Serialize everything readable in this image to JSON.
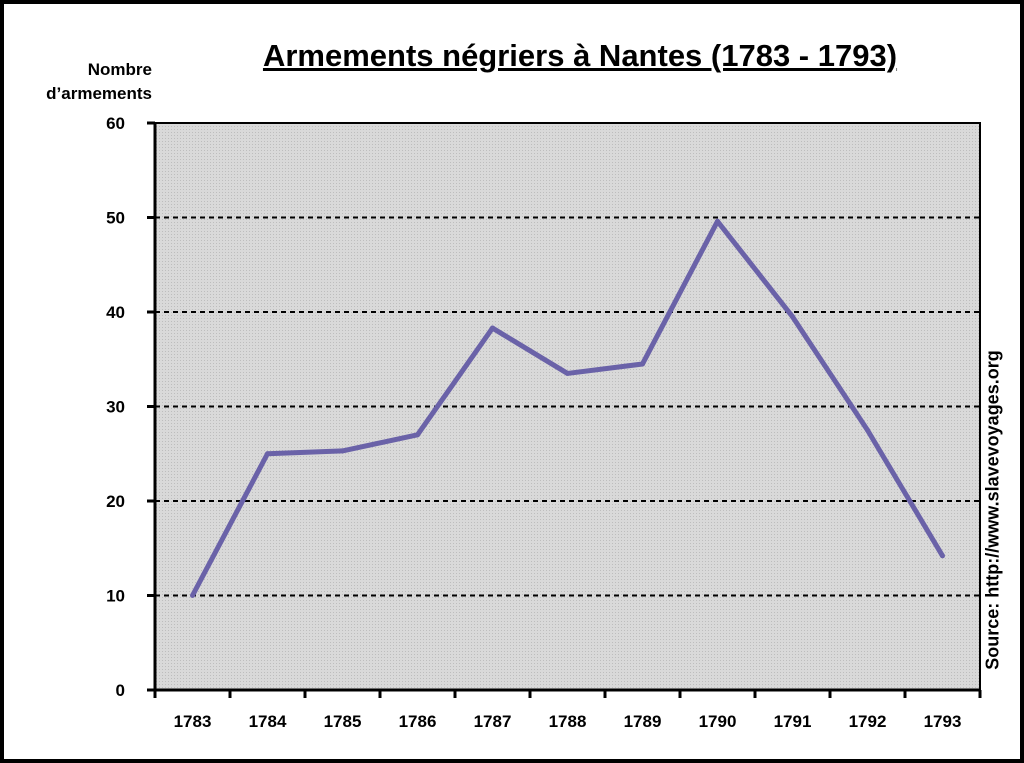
{
  "chart_data": {
    "type": "line",
    "title": "Armements négriers à Nantes (1783 - 1793)",
    "ylabel_lines": [
      "Nombre",
      "d’armements"
    ],
    "source": "Source: http://www.slavevoyages.org",
    "categories": [
      "1783",
      "1784",
      "1785",
      "1786",
      "1787",
      "1788",
      "1789",
      "1790",
      "1791",
      "1792",
      "1793"
    ],
    "values": [
      10,
      25,
      25.3,
      27,
      38.3,
      33.5,
      34.5,
      49.6,
      39.5,
      27.5,
      14.2
    ],
    "ylim": [
      0,
      60
    ],
    "yticks": [
      0,
      10,
      20,
      30,
      40,
      50,
      60
    ],
    "grid": true,
    "colors": {
      "line": "#6a62a8",
      "plot_bg": "#d9d9d9",
      "gridline": "#000000"
    }
  }
}
